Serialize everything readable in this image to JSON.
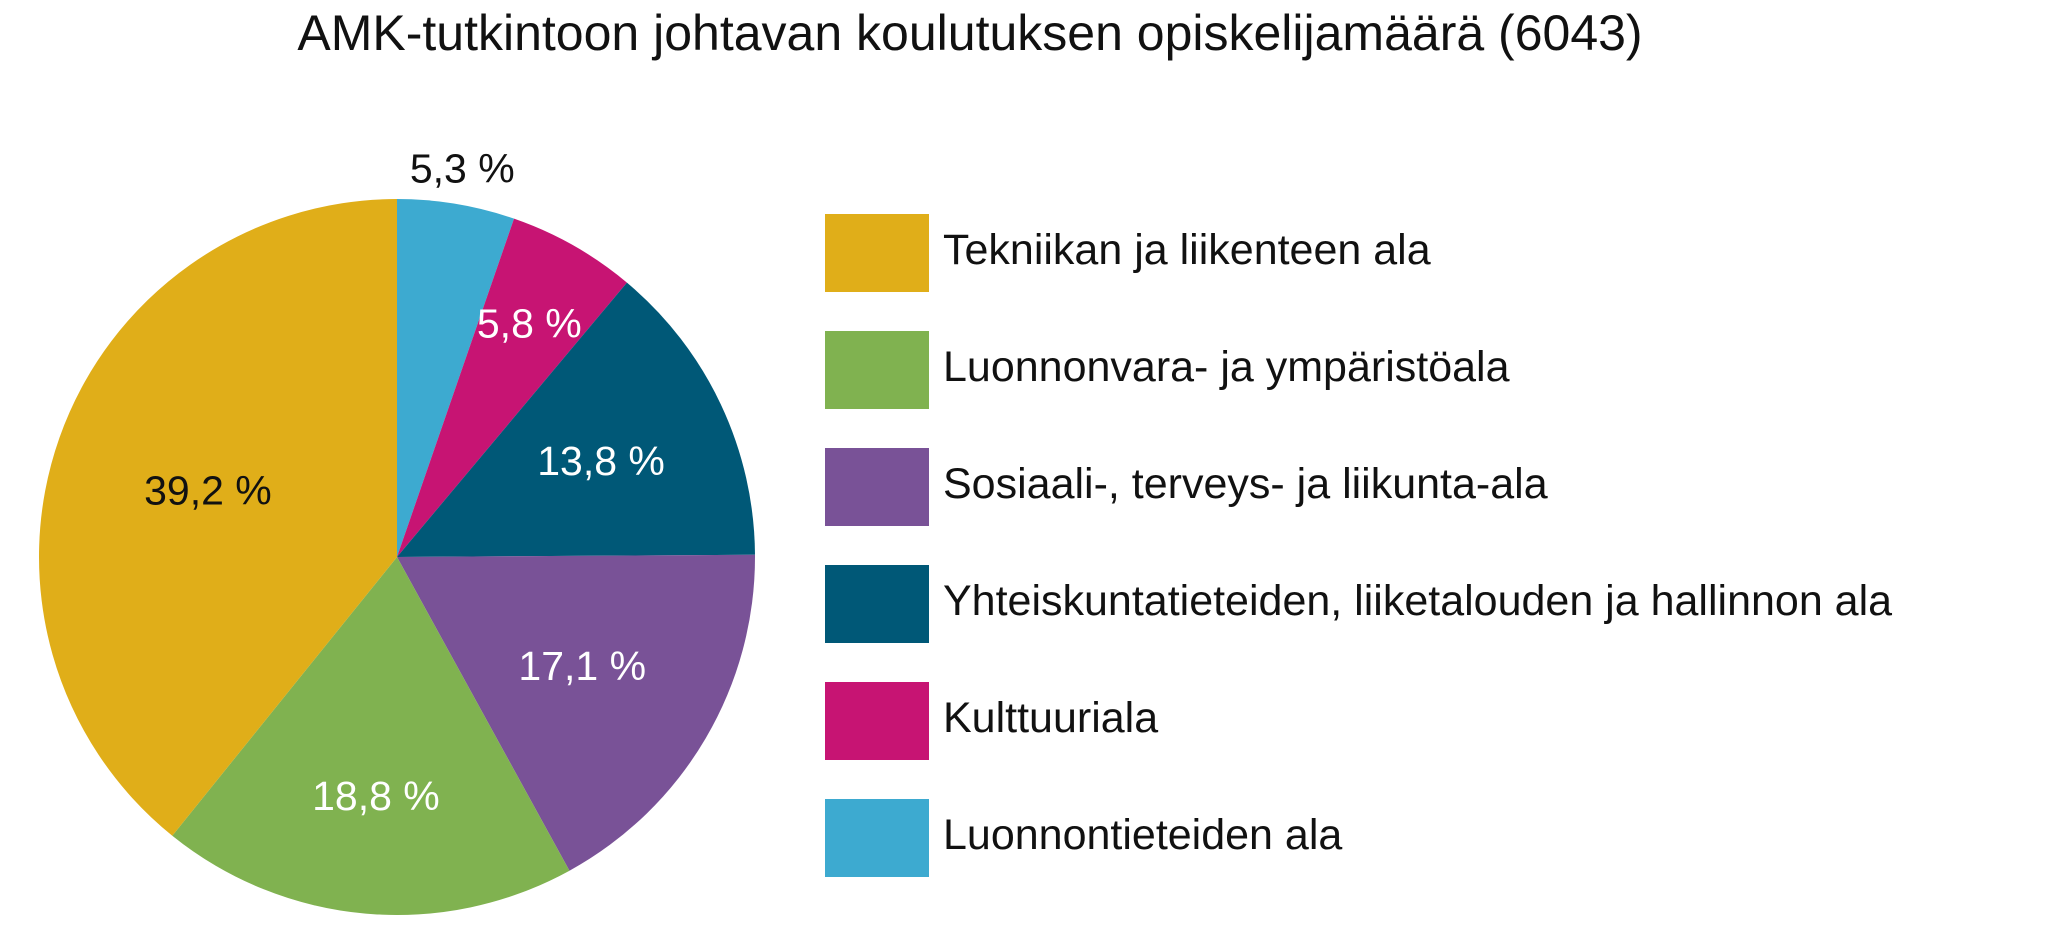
{
  "chart_data": {
    "type": "pie",
    "title": "AMK-tutkintoon johtavan koulutuksen opiskelijamäärä (6043)",
    "slices": [
      {
        "name": "Luonnontieteiden ala",
        "value": 5.3,
        "label": "5,3 %",
        "color": "#3DAAD0",
        "label_color": "#111111"
      },
      {
        "name": "Kulttuuriala",
        "value": 5.8,
        "label": "5,8 %",
        "color": "#C71473",
        "label_color": "#ffffff"
      },
      {
        "name": "Yhteiskuntatieteiden, liiketalouden ja hallinnon ala",
        "value": 13.8,
        "label": "13,8 %",
        "color": "#005877",
        "label_color": "#ffffff"
      },
      {
        "name": "Sosiaali-, terveys- ja liikunta-ala",
        "value": 17.1,
        "label": "17,1 %",
        "color": "#795297",
        "label_color": "#ffffff"
      },
      {
        "name": "Luonnonvara- ja ympäristöala",
        "value": 18.8,
        "label": "18,8 %",
        "color": "#80B250",
        "label_color": "#ffffff"
      },
      {
        "name": "Tekniikan ja liikenteen ala",
        "value": 39.2,
        "label": "39,2 %",
        "color": "#E0AE19",
        "label_color": "#111111"
      }
    ],
    "legend": [
      {
        "label": "Tekniikan ja liikenteen ala",
        "color": "#E0AE19"
      },
      {
        "label": "Luonnonvara- ja ympäristöala",
        "color": "#80B250"
      },
      {
        "label": "Sosiaali-, terveys- ja liikunta-ala",
        "color": "#795297"
      },
      {
        "label": "Yhteiskuntatieteiden, liiketalouden ja hallinnon ala",
        "color": "#005877"
      },
      {
        "label": "Kulttuuriala",
        "color": "#C71473"
      },
      {
        "label": "Luonnontieteiden ala",
        "color": "#3DAAD0"
      }
    ],
    "legend_position": "right"
  }
}
